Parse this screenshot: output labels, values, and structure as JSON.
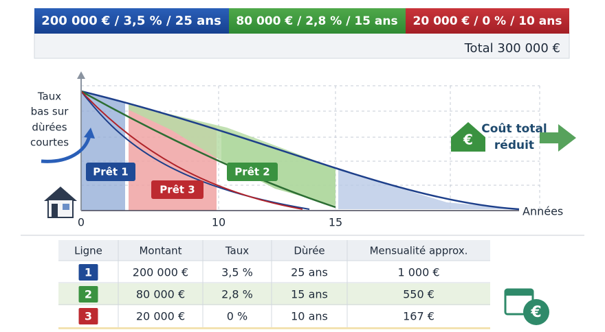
{
  "banner": {
    "segments": [
      "200 000 € / 3,5 % / 25 ans",
      "80 000 € / 2,8 % / 15 ans",
      "20 000 € / 0 % / 10 ans"
    ],
    "total": "Total 300 000 €"
  },
  "diagram": {
    "annotation": [
      "Taux",
      "bas sur",
      "dùrées",
      "courtes"
    ],
    "loans": [
      "Prêt 1",
      "Prêt 2",
      "Prêt 3"
    ],
    "x_labels": [
      "0",
      "10",
      "15"
    ],
    "x_axis_label": "Années",
    "result": [
      "Coût total",
      "réduit"
    ]
  },
  "table": {
    "header": [
      "Ligne",
      "Montant",
      "Taux",
      "Dùrée",
      "Mensualité approx."
    ],
    "rows": [
      [
        "1",
        "200 000 €",
        "3,5 %",
        "25 ans",
        "1 000 €"
      ],
      [
        "2",
        "80 000 €",
        "2,8 %",
        "15 ans",
        "550 €"
      ],
      [
        "3",
        "20 000 €",
        "0 %",
        "10 ans",
        "167 €"
      ]
    ]
  }
}
